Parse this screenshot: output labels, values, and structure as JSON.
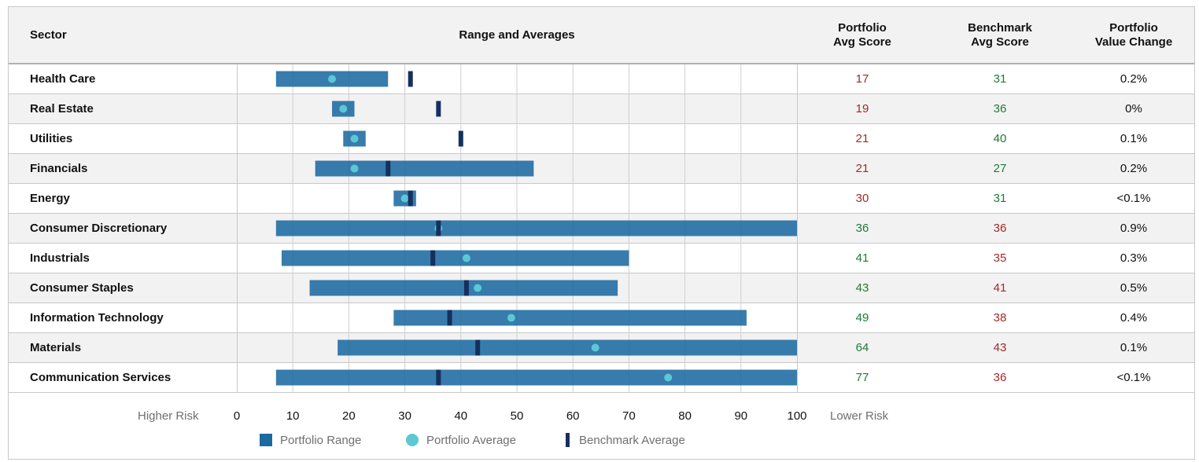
{
  "header": {
    "sector": "Sector",
    "range": "Range and Averages",
    "portfolio_avg": [
      "Portfolio",
      "Avg Score"
    ],
    "benchmark_avg": [
      "Benchmark",
      "Avg Score"
    ],
    "value_change": [
      "Portfolio",
      "Value Change"
    ]
  },
  "axis": {
    "left_label": "Higher Risk",
    "right_label": "Lower Risk",
    "ticks": [
      "0",
      "10",
      "20",
      "30",
      "40",
      "50",
      "60",
      "70",
      "80",
      "90",
      "100"
    ]
  },
  "legend": {
    "range": "Portfolio Range",
    "avg": "Portfolio Average",
    "bench": "Benchmark Average"
  },
  "colors": {
    "range": "#1b6aa0",
    "avg": "#5bc8d4",
    "bench": "#15305e",
    "good": "#1e7b34",
    "bad": "#a12a2a"
  },
  "chart_data": {
    "type": "table",
    "xlim": [
      0,
      100
    ],
    "grid": true,
    "rows": [
      {
        "sector": "Health Care",
        "range": [
          7,
          27
        ],
        "portfolio_avg": 17,
        "benchmark_avg": 31,
        "portfolio_avg_label": "17",
        "benchmark_avg_label": "31",
        "value_change": "0.2%"
      },
      {
        "sector": "Real Estate",
        "range": [
          17,
          21
        ],
        "portfolio_avg": 19,
        "benchmark_avg": 36,
        "portfolio_avg_label": "19",
        "benchmark_avg_label": "36",
        "value_change": "0%"
      },
      {
        "sector": "Utilities",
        "range": [
          19,
          23
        ],
        "portfolio_avg": 21,
        "benchmark_avg": 40,
        "portfolio_avg_label": "21",
        "benchmark_avg_label": "40",
        "value_change": "0.1%"
      },
      {
        "sector": "Financials",
        "range": [
          14,
          53
        ],
        "portfolio_avg": 21,
        "benchmark_avg": 27,
        "portfolio_avg_label": "21",
        "benchmark_avg_label": "27",
        "value_change": "0.2%"
      },
      {
        "sector": "Energy",
        "range": [
          28,
          32
        ],
        "portfolio_avg": 30,
        "benchmark_avg": 31,
        "portfolio_avg_label": "30",
        "benchmark_avg_label": "31",
        "value_change": "<0.1%"
      },
      {
        "sector": "Consumer Discretionary",
        "range": [
          7,
          100
        ],
        "portfolio_avg": 36,
        "benchmark_avg": 36,
        "portfolio_avg_label": "36",
        "benchmark_avg_label": "36",
        "value_change": "0.9%"
      },
      {
        "sector": "Industrials",
        "range": [
          8,
          70
        ],
        "portfolio_avg": 41,
        "benchmark_avg": 35,
        "portfolio_avg_label": "41",
        "benchmark_avg_label": "35",
        "value_change": "0.3%"
      },
      {
        "sector": "Consumer Staples",
        "range": [
          13,
          68
        ],
        "portfolio_avg": 43,
        "benchmark_avg": 41,
        "portfolio_avg_label": "43",
        "benchmark_avg_label": "41",
        "value_change": "0.5%"
      },
      {
        "sector": "Information Technology",
        "range": [
          28,
          91
        ],
        "portfolio_avg": 49,
        "benchmark_avg": 38,
        "portfolio_avg_label": "49",
        "benchmark_avg_label": "38",
        "value_change": "0.4%"
      },
      {
        "sector": "Materials",
        "range": [
          18,
          100
        ],
        "portfolio_avg": 64,
        "benchmark_avg": 43,
        "portfolio_avg_label": "64",
        "benchmark_avg_label": "43",
        "value_change": "0.1%"
      },
      {
        "sector": "Communication Services",
        "range": [
          7,
          100
        ],
        "portfolio_avg": 77,
        "benchmark_avg": 36,
        "portfolio_avg_label": "77",
        "benchmark_avg_label": "36",
        "value_change": "<0.1%"
      }
    ]
  }
}
